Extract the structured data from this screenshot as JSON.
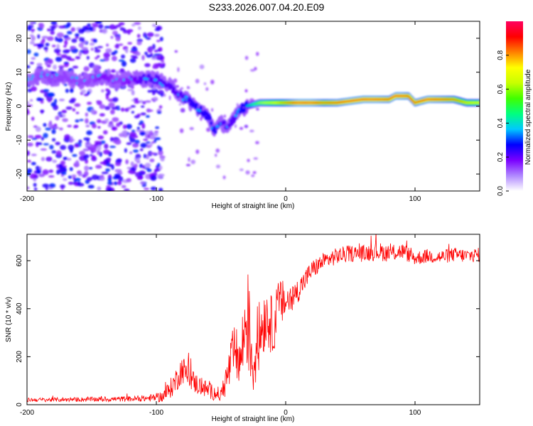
{
  "title": "S233.2026.007.04.20.E09",
  "chart_data": [
    {
      "type": "heatmap",
      "name": "spectrogram",
      "xlabel": "Height of straight line (km)",
      "ylabel": "Frequency (Hz)",
      "xlim": [
        -200,
        150
      ],
      "ylim": [
        -25,
        25
      ],
      "xticks": [
        -200,
        -100,
        0,
        100
      ],
      "yticks": [
        -20,
        -10,
        0,
        10,
        20
      ],
      "colorbar": {
        "label": "Normalized spectral amplitude",
        "range": [
          0,
          1
        ],
        "ticks": [
          "0.0",
          "0.2",
          "0.4",
          "0.6",
          "0.8"
        ],
        "colors": [
          "#ffffff",
          "#b088ff",
          "#7a00ff",
          "#0000ff",
          "#00c8ff",
          "#00ff80",
          "#40ff00",
          "#c8ff00",
          "#ffff00",
          "#ff8000",
          "#ff0000",
          "#ff0060"
        ]
      },
      "ridge": {
        "x": [
          -200,
          -190,
          -180,
          -170,
          -160,
          -150,
          -140,
          -130,
          -120,
          -110,
          -100,
          -90,
          -80,
          -70,
          -60,
          -55,
          -50,
          -45,
          -40,
          -35,
          -30,
          -20,
          -10,
          0,
          10,
          20,
          30,
          40,
          50,
          60,
          70,
          80,
          85,
          90,
          95,
          100,
          110,
          120,
          130,
          140,
          150
        ],
        "y": [
          8,
          9,
          8,
          9,
          7,
          8,
          9,
          7,
          8,
          8,
          8,
          6,
          3,
          0,
          -3,
          -7,
          -5,
          -6,
          -4,
          -1,
          0,
          1,
          1,
          1,
          1,
          1,
          1,
          1,
          1.5,
          2,
          2,
          2,
          3,
          3,
          3,
          1,
          2,
          2,
          2,
          1,
          1
        ],
        "amplitude": [
          0.15,
          0.2,
          0.2,
          0.2,
          0.2,
          0.2,
          0.25,
          0.2,
          0.25,
          0.3,
          0.3,
          0.3,
          0.3,
          0.35,
          0.35,
          0.35,
          0.3,
          0.3,
          0.3,
          0.35,
          0.4,
          0.6,
          0.7,
          0.8,
          0.95,
          0.95,
          0.85,
          0.9,
          0.95,
          0.95,
          0.95,
          0.9,
          0.95,
          0.95,
          0.9,
          0.9,
          0.95,
          0.9,
          0.85,
          0.75,
          0.7
        ]
      },
      "noise_region_x": [
        -200,
        -100
      ]
    },
    {
      "type": "line",
      "name": "snr",
      "xlabel": "Height of straight line (km)",
      "ylabel": "SNR (10 * v/v)",
      "xlim": [
        -200,
        150
      ],
      "ylim": [
        0,
        710
      ],
      "xticks": [
        -200,
        -100,
        0,
        100
      ],
      "yticks": [
        0,
        200,
        400,
        600
      ],
      "color": "#ff0000",
      "envelope": {
        "x": [
          -200,
          -150,
          -110,
          -100,
          -95,
          -90,
          -85,
          -80,
          -75,
          -70,
          -60,
          -50,
          -45,
          -40,
          -35,
          -30,
          -25,
          -20,
          -15,
          -10,
          -5,
          0,
          5,
          10,
          20,
          30,
          40,
          50,
          60,
          70,
          80,
          90,
          100,
          110,
          120,
          130,
          140,
          150
        ],
        "mean": [
          20,
          22,
          25,
          30,
          35,
          60,
          100,
          150,
          120,
          90,
          60,
          40,
          120,
          220,
          180,
          380,
          150,
          300,
          380,
          320,
          420,
          430,
          440,
          480,
          560,
          600,
          620,
          630,
          630,
          640,
          630,
          640,
          610,
          620,
          615,
          625,
          620,
          625
        ],
        "spread": [
          8,
          10,
          12,
          18,
          25,
          40,
          50,
          60,
          50,
          45,
          35,
          30,
          80,
          120,
          110,
          240,
          120,
          150,
          130,
          120,
          110,
          80,
          60,
          50,
          40,
          35,
          35,
          35,
          35,
          40,
          35,
          35,
          30,
          30,
          30,
          30,
          30,
          30
        ]
      }
    }
  ]
}
